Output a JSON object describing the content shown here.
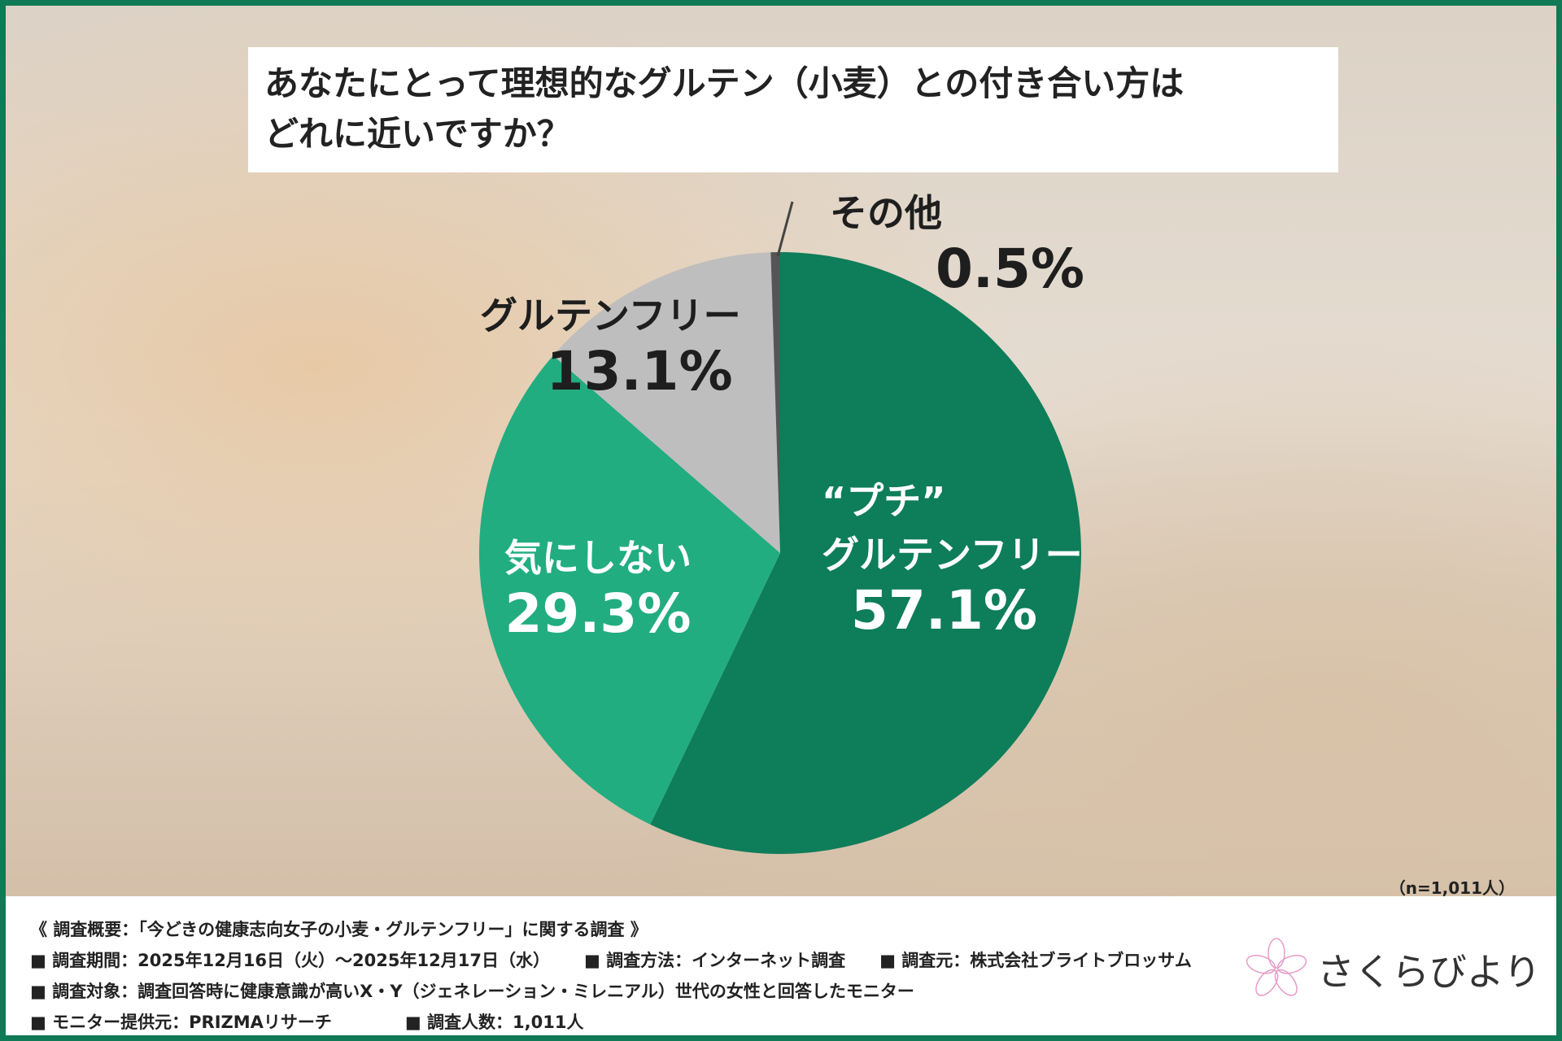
{
  "title": [
    "あなたにとって理想的なグルテン（小麦）との付き合い方は",
    "どれに近いですか？"
  ],
  "chart_data": {
    "type": "pie",
    "title": "あなたにとって理想的なグルテン（小麦）との付き合い方はどれに近いですか？",
    "start": "top",
    "direction": "clockwise",
    "slices": [
      {
        "label": "“プチ”グルテンフリー",
        "label_lines": [
          "“プチ”",
          "グルテンフリー"
        ],
        "value": 57.1,
        "display": "57.1%",
        "color": "#0e7d5a"
      },
      {
        "label": "気にしない",
        "label_lines": [
          "気にしない"
        ],
        "value": 29.3,
        "display": "29.3%",
        "color": "#22ad80"
      },
      {
        "label": "グルテンフリー",
        "label_lines": [
          "グルテンフリー"
        ],
        "value": 13.1,
        "display": "13.1%",
        "color": "#bebebe"
      },
      {
        "label": "その他",
        "label_lines": [
          "その他"
        ],
        "value": 0.5,
        "display": "0.5%",
        "color": "#555555"
      }
    ],
    "sample_size": "（n=1,011人）"
  },
  "footer": {
    "heading": "《 調査概要：「今どきの健康志向女子の小麦・グルテンフリー」に関する調査 》",
    "rows": [
      [
        "■ 調査期間：2025年12月16日（火）～2025年12月17日（水）",
        "■ 調査方法：インターネット調査",
        "■ 調査元：株式会社ブライトブロッサム"
      ],
      [
        "■ 調査対象：調査回答時に健康意識が高いX・Y（ジェネレーション・ミレニアル）世代の女性と回答したモニター"
      ],
      [
        "■ モニター提供元：PRIZMAリサーチ",
        "■ 調査人数：1,011人"
      ]
    ]
  },
  "logo": {
    "text": "さくらびより",
    "icon": "sakura-flower-icon",
    "color": "#e79ac6"
  }
}
